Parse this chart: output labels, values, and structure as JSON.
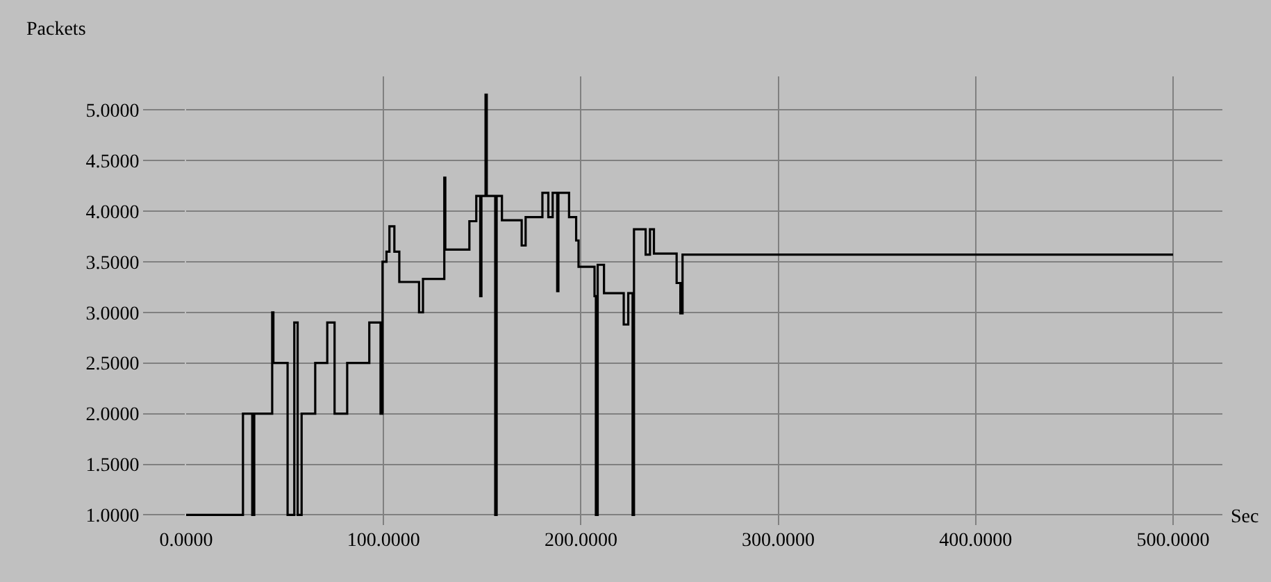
{
  "chart_data": {
    "type": "step",
    "xlabel": "Sec",
    "ylabel": "Packets",
    "x": [
      0,
      28.8,
      33.5,
      34.5,
      43.6,
      44.2,
      51.4,
      54.8,
      56.5,
      58.5,
      65.4,
      71.5,
      75.2,
      81.6,
      92.8,
      98.5,
      99.5,
      101.5,
      103,
      105.5,
      108,
      118,
      120,
      130.8,
      131.3,
      143.5,
      147,
      149,
      149.6,
      151.7,
      152.3,
      156.6,
      157.3,
      160,
      170,
      172,
      180.5,
      183.5,
      185.7,
      188,
      188.6,
      194,
      197.6,
      198.8,
      206.9,
      207.6,
      208.5,
      211.7,
      221.7,
      224,
      226.2,
      226.9,
      232.8,
      235,
      237,
      248.5,
      250.4,
      251.5,
      500
    ],
    "series": [
      {
        "color": "#000000",
        "values": [
          1.0,
          2.0,
          1.0,
          2.0,
          3.0,
          2.5,
          1.0,
          2.9,
          1.0,
          2.0,
          2.5,
          2.9,
          2.0,
          2.5,
          2.9,
          2.0,
          3.5,
          3.6,
          3.85,
          3.6,
          3.3,
          3.0,
          3.33,
          4.33,
          3.62,
          3.9,
          4.15,
          3.16,
          4.15,
          5.15,
          4.15,
          1.0,
          4.15,
          3.91,
          3.66,
          3.94,
          4.18,
          3.94,
          4.18,
          3.21,
          4.18,
          3.94,
          3.71,
          3.45,
          3.16,
          1.0,
          3.47,
          3.19,
          2.88,
          3.19,
          1.0,
          3.82,
          3.57,
          3.82,
          3.58,
          3.29,
          2.99,
          3.57,
          3.57
        ]
      }
    ],
    "xlim": [
      0,
      525
    ],
    "ylim": [
      0.9,
      5.33
    ],
    "xticks": [
      {
        "value": 0,
        "label": "0.0000"
      },
      {
        "value": 100,
        "label": "100.0000"
      },
      {
        "value": 200,
        "label": "200.0000"
      },
      {
        "value": 300,
        "label": "300.0000"
      },
      {
        "value": 400,
        "label": "400.0000"
      },
      {
        "value": 500,
        "label": "500.0000"
      }
    ],
    "yticks": [
      {
        "value": 1,
        "label": "1.0000"
      },
      {
        "value": 1.5,
        "label": "1.5000"
      },
      {
        "value": 2,
        "label": "2.0000"
      },
      {
        "value": 2.5,
        "label": "2.5000"
      },
      {
        "value": 3,
        "label": "3.0000"
      },
      {
        "value": 3.5,
        "label": "3.5000"
      },
      {
        "value": 4,
        "label": "4.0000"
      },
      {
        "value": 4.5,
        "label": "4.5000"
      },
      {
        "value": 5,
        "label": "5.0000"
      }
    ],
    "grid": true,
    "marker": "none",
    "line_style": "solid"
  }
}
